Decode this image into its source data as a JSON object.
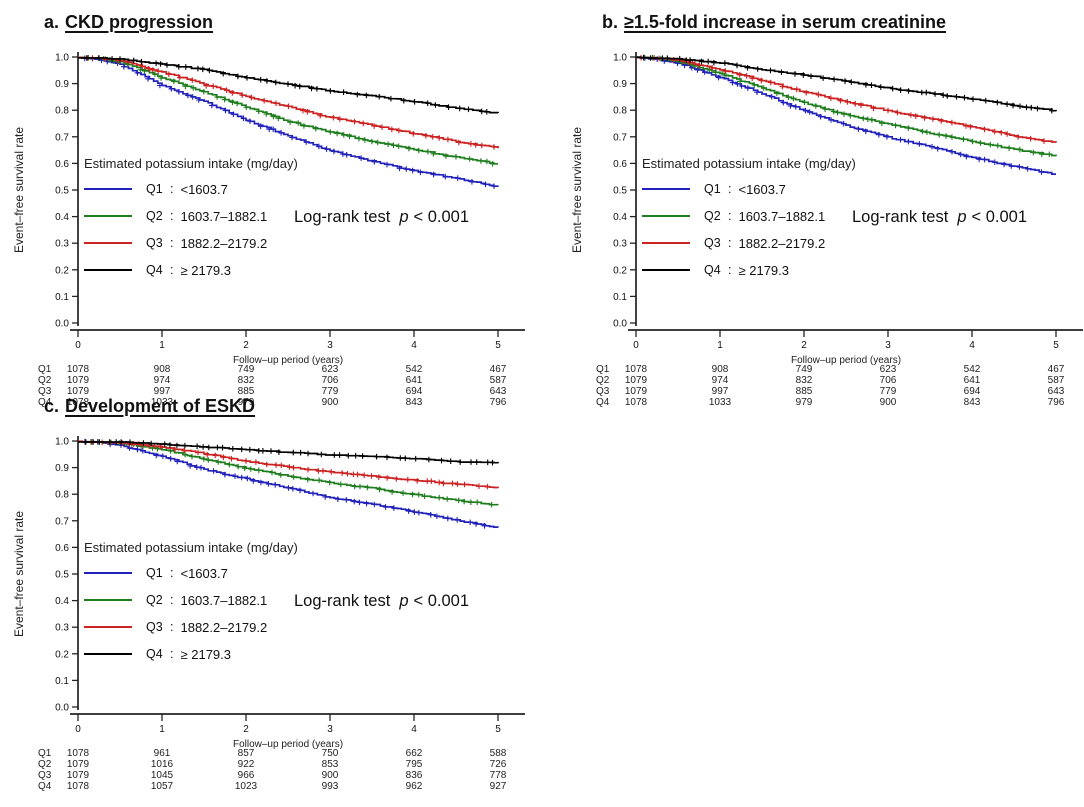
{
  "figure": {
    "background": "#ffffff",
    "quartile_colors": {
      "q1": "#2222bb",
      "q2": "#1e7e1e",
      "q3": "#cc2222",
      "q4": "#000000"
    }
  },
  "panels": [
    {
      "label": "a.",
      "title": "CKD progression",
      "ylabel": "Event–free survival rate",
      "xlabel": "Follow–up period (years)",
      "legend_header": "Estimated potassium intake (mg/day)",
      "logrank_text": "Log-rank test",
      "logrank_p": "p",
      "logrank_value": "< 0.001"
    },
    {
      "label": "b.",
      "title": "≥1.5-fold increase in serum creatinine",
      "ylabel": "Event–free survival rate",
      "xlabel": "Follow–up period (years)",
      "legend_header": "Estimated potassium intake (mg/day)",
      "logrank_text": "Log-rank test",
      "logrank_p": "p",
      "logrank_value": "< 0.001"
    },
    {
      "label": "c.",
      "title": "Development of ESKD",
      "ylabel": "Event–free survival rate",
      "xlabel": "Follow–up period (years)",
      "legend_header": "Estimated potassium intake (mg/day)",
      "logrank_text": "Log-rank test",
      "logrank_p": "p",
      "logrank_value": "< 0.001"
    }
  ],
  "chart_data": [
    {
      "type": "line",
      "subtype": "kaplan-meier-step",
      "panel": "a",
      "title": "CKD progression",
      "xlabel": "Follow–up period (years)",
      "ylabel": "Event–free survival rate",
      "xlim": [
        0,
        5
      ],
      "ylim": [
        0.0,
        1.0
      ],
      "xticks": [
        0,
        1,
        2,
        3,
        4,
        5
      ],
      "yticks": [
        0.0,
        0.1,
        0.2,
        0.3,
        0.4,
        0.5,
        0.6,
        0.7,
        0.8,
        0.9,
        1.0
      ],
      "grid": false,
      "legend_position": "inside-left",
      "annotation": "Log-rank test p < 0.001",
      "x": [
        0,
        0.2,
        0.5,
        1,
        1.5,
        2,
        2.5,
        3,
        3.5,
        4,
        4.5,
        5
      ],
      "series": [
        {
          "name": "Q1",
          "label": "<1603.7",
          "color": "#2222bb",
          "values": [
            1.0,
            0.995,
            0.975,
            0.895,
            0.835,
            0.765,
            0.705,
            0.65,
            0.61,
            0.575,
            0.545,
            0.515
          ]
        },
        {
          "name": "Q2",
          "label": "1603.7–1882.1",
          "color": "#1e7e1e",
          "values": [
            1.0,
            1.0,
            0.985,
            0.925,
            0.87,
            0.815,
            0.76,
            0.72,
            0.685,
            0.655,
            0.625,
            0.6
          ]
        },
        {
          "name": "Q3",
          "label": "1882.2–2179.2",
          "color": "#cc2222",
          "values": [
            1.0,
            1.0,
            0.99,
            0.945,
            0.9,
            0.855,
            0.815,
            0.775,
            0.745,
            0.715,
            0.685,
            0.66
          ]
        },
        {
          "name": "Q4",
          "label": "≥ 2179.3",
          "color": "#000000",
          "values": [
            1.0,
            1.0,
            0.995,
            0.975,
            0.955,
            0.925,
            0.9,
            0.875,
            0.855,
            0.835,
            0.81,
            0.79
          ]
        }
      ],
      "number_at_risk": {
        "x": [
          0,
          1,
          2,
          3,
          4,
          5
        ],
        "rows": [
          {
            "name": "Q1",
            "counts": [
              "1078",
              "908",
              "749",
              "623",
              "542",
              "467"
            ]
          },
          {
            "name": "Q2",
            "counts": [
              "1079",
              "974",
              "832",
              "706",
              "641",
              "587"
            ]
          },
          {
            "name": "Q3",
            "counts": [
              "1079",
              "997",
              "885",
              "779",
              "694",
              "643"
            ]
          },
          {
            "name": "Q4",
            "counts": [
              "1078",
              "1033",
              "979",
              "900",
              "843",
              "796"
            ]
          }
        ]
      }
    },
    {
      "type": "line",
      "subtype": "kaplan-meier-step",
      "panel": "b",
      "title": "≥1.5-fold increase in serum creatinine",
      "xlabel": "Follow–up period (years)",
      "ylabel": "Event–free survival rate",
      "xlim": [
        0,
        5
      ],
      "ylim": [
        0.0,
        1.0
      ],
      "xticks": [
        0,
        1,
        2,
        3,
        4,
        5
      ],
      "yticks": [
        0.0,
        0.1,
        0.2,
        0.3,
        0.4,
        0.5,
        0.6,
        0.7,
        0.8,
        0.9,
        1.0
      ],
      "grid": false,
      "legend_position": "inside-left",
      "annotation": "Log-rank test p < 0.001",
      "x": [
        0,
        0.2,
        0.5,
        1,
        1.5,
        2,
        2.5,
        3,
        3.5,
        4,
        4.5,
        5
      ],
      "series": [
        {
          "name": "Q1",
          "label": "<1603.7",
          "color": "#2222bb",
          "values": [
            1.0,
            0.995,
            0.98,
            0.925,
            0.865,
            0.8,
            0.745,
            0.7,
            0.665,
            0.625,
            0.59,
            0.56
          ]
        },
        {
          "name": "Q2",
          "label": "1603.7–1882.1",
          "color": "#1e7e1e",
          "values": [
            1.0,
            1.0,
            0.985,
            0.94,
            0.885,
            0.83,
            0.785,
            0.75,
            0.715,
            0.685,
            0.655,
            0.63
          ]
        },
        {
          "name": "Q3",
          "label": "1882.2–2179.2",
          "color": "#cc2222",
          "values": [
            1.0,
            1.0,
            0.99,
            0.955,
            0.915,
            0.87,
            0.835,
            0.8,
            0.77,
            0.74,
            0.705,
            0.68
          ]
        },
        {
          "name": "Q4",
          "label": "≥ 2179.3",
          "color": "#000000",
          "values": [
            1.0,
            1.0,
            0.995,
            0.98,
            0.955,
            0.935,
            0.91,
            0.885,
            0.865,
            0.845,
            0.82,
            0.8
          ]
        }
      ],
      "number_at_risk": {
        "x": [
          0,
          1,
          2,
          3,
          4,
          5
        ],
        "rows": [
          {
            "name": "Q1",
            "counts": [
              "1078",
              "908",
              "749",
              "623",
              "542",
              "467"
            ]
          },
          {
            "name": "Q2",
            "counts": [
              "1079",
              "974",
              "832",
              "706",
              "641",
              "587"
            ]
          },
          {
            "name": "Q3",
            "counts": [
              "1079",
              "997",
              "885",
              "779",
              "694",
              "643"
            ]
          },
          {
            "name": "Q4",
            "counts": [
              "1078",
              "1033",
              "979",
              "900",
              "843",
              "796"
            ]
          }
        ]
      }
    },
    {
      "type": "line",
      "subtype": "kaplan-meier-step",
      "panel": "c",
      "title": "Development of ESKD",
      "xlabel": "Follow–up period (years)",
      "ylabel": "Event–free survival rate",
      "xlim": [
        0,
        5
      ],
      "ylim": [
        0.0,
        1.0
      ],
      "xticks": [
        0,
        1,
        2,
        3,
        4,
        5
      ],
      "yticks": [
        0.0,
        0.1,
        0.2,
        0.3,
        0.4,
        0.5,
        0.6,
        0.7,
        0.8,
        0.9,
        1.0
      ],
      "grid": false,
      "legend_position": "inside-left",
      "annotation": "Log-rank test p < 0.001",
      "x": [
        0,
        0.2,
        0.5,
        1,
        1.5,
        2,
        2.5,
        3,
        3.5,
        4,
        4.5,
        5
      ],
      "series": [
        {
          "name": "Q1",
          "label": "<1603.7",
          "color": "#2222bb",
          "values": [
            1.0,
            1.0,
            0.985,
            0.945,
            0.895,
            0.86,
            0.825,
            0.79,
            0.765,
            0.735,
            0.705,
            0.675
          ]
        },
        {
          "name": "Q2",
          "label": "1603.7–1882.1",
          "color": "#1e7e1e",
          "values": [
            1.0,
            1.0,
            0.995,
            0.97,
            0.935,
            0.9,
            0.87,
            0.845,
            0.825,
            0.8,
            0.78,
            0.76
          ]
        },
        {
          "name": "Q3",
          "label": "1882.2–2179.2",
          "color": "#cc2222",
          "values": [
            1.0,
            1.0,
            0.995,
            0.98,
            0.955,
            0.925,
            0.905,
            0.885,
            0.87,
            0.855,
            0.84,
            0.825
          ]
        },
        {
          "name": "Q4",
          "label": "≥ 2179.3",
          "color": "#000000",
          "values": [
            1.0,
            1.0,
            1.0,
            0.99,
            0.98,
            0.97,
            0.96,
            0.95,
            0.945,
            0.935,
            0.925,
            0.92
          ]
        }
      ],
      "number_at_risk": {
        "x": [
          0,
          1,
          2,
          3,
          4,
          5
        ],
        "rows": [
          {
            "name": "Q1",
            "counts": [
              "1078",
              "961",
              "857",
              "750",
              "662",
              "588"
            ]
          },
          {
            "name": "Q2",
            "counts": [
              "1079",
              "1016",
              "922",
              "853",
              "795",
              "726"
            ]
          },
          {
            "name": "Q3",
            "counts": [
              "1079",
              "1045",
              "966",
              "900",
              "836",
              "778"
            ]
          },
          {
            "name": "Q4",
            "counts": [
              "1078",
              "1057",
              "1023",
              "993",
              "962",
              "927"
            ]
          }
        ]
      }
    }
  ]
}
